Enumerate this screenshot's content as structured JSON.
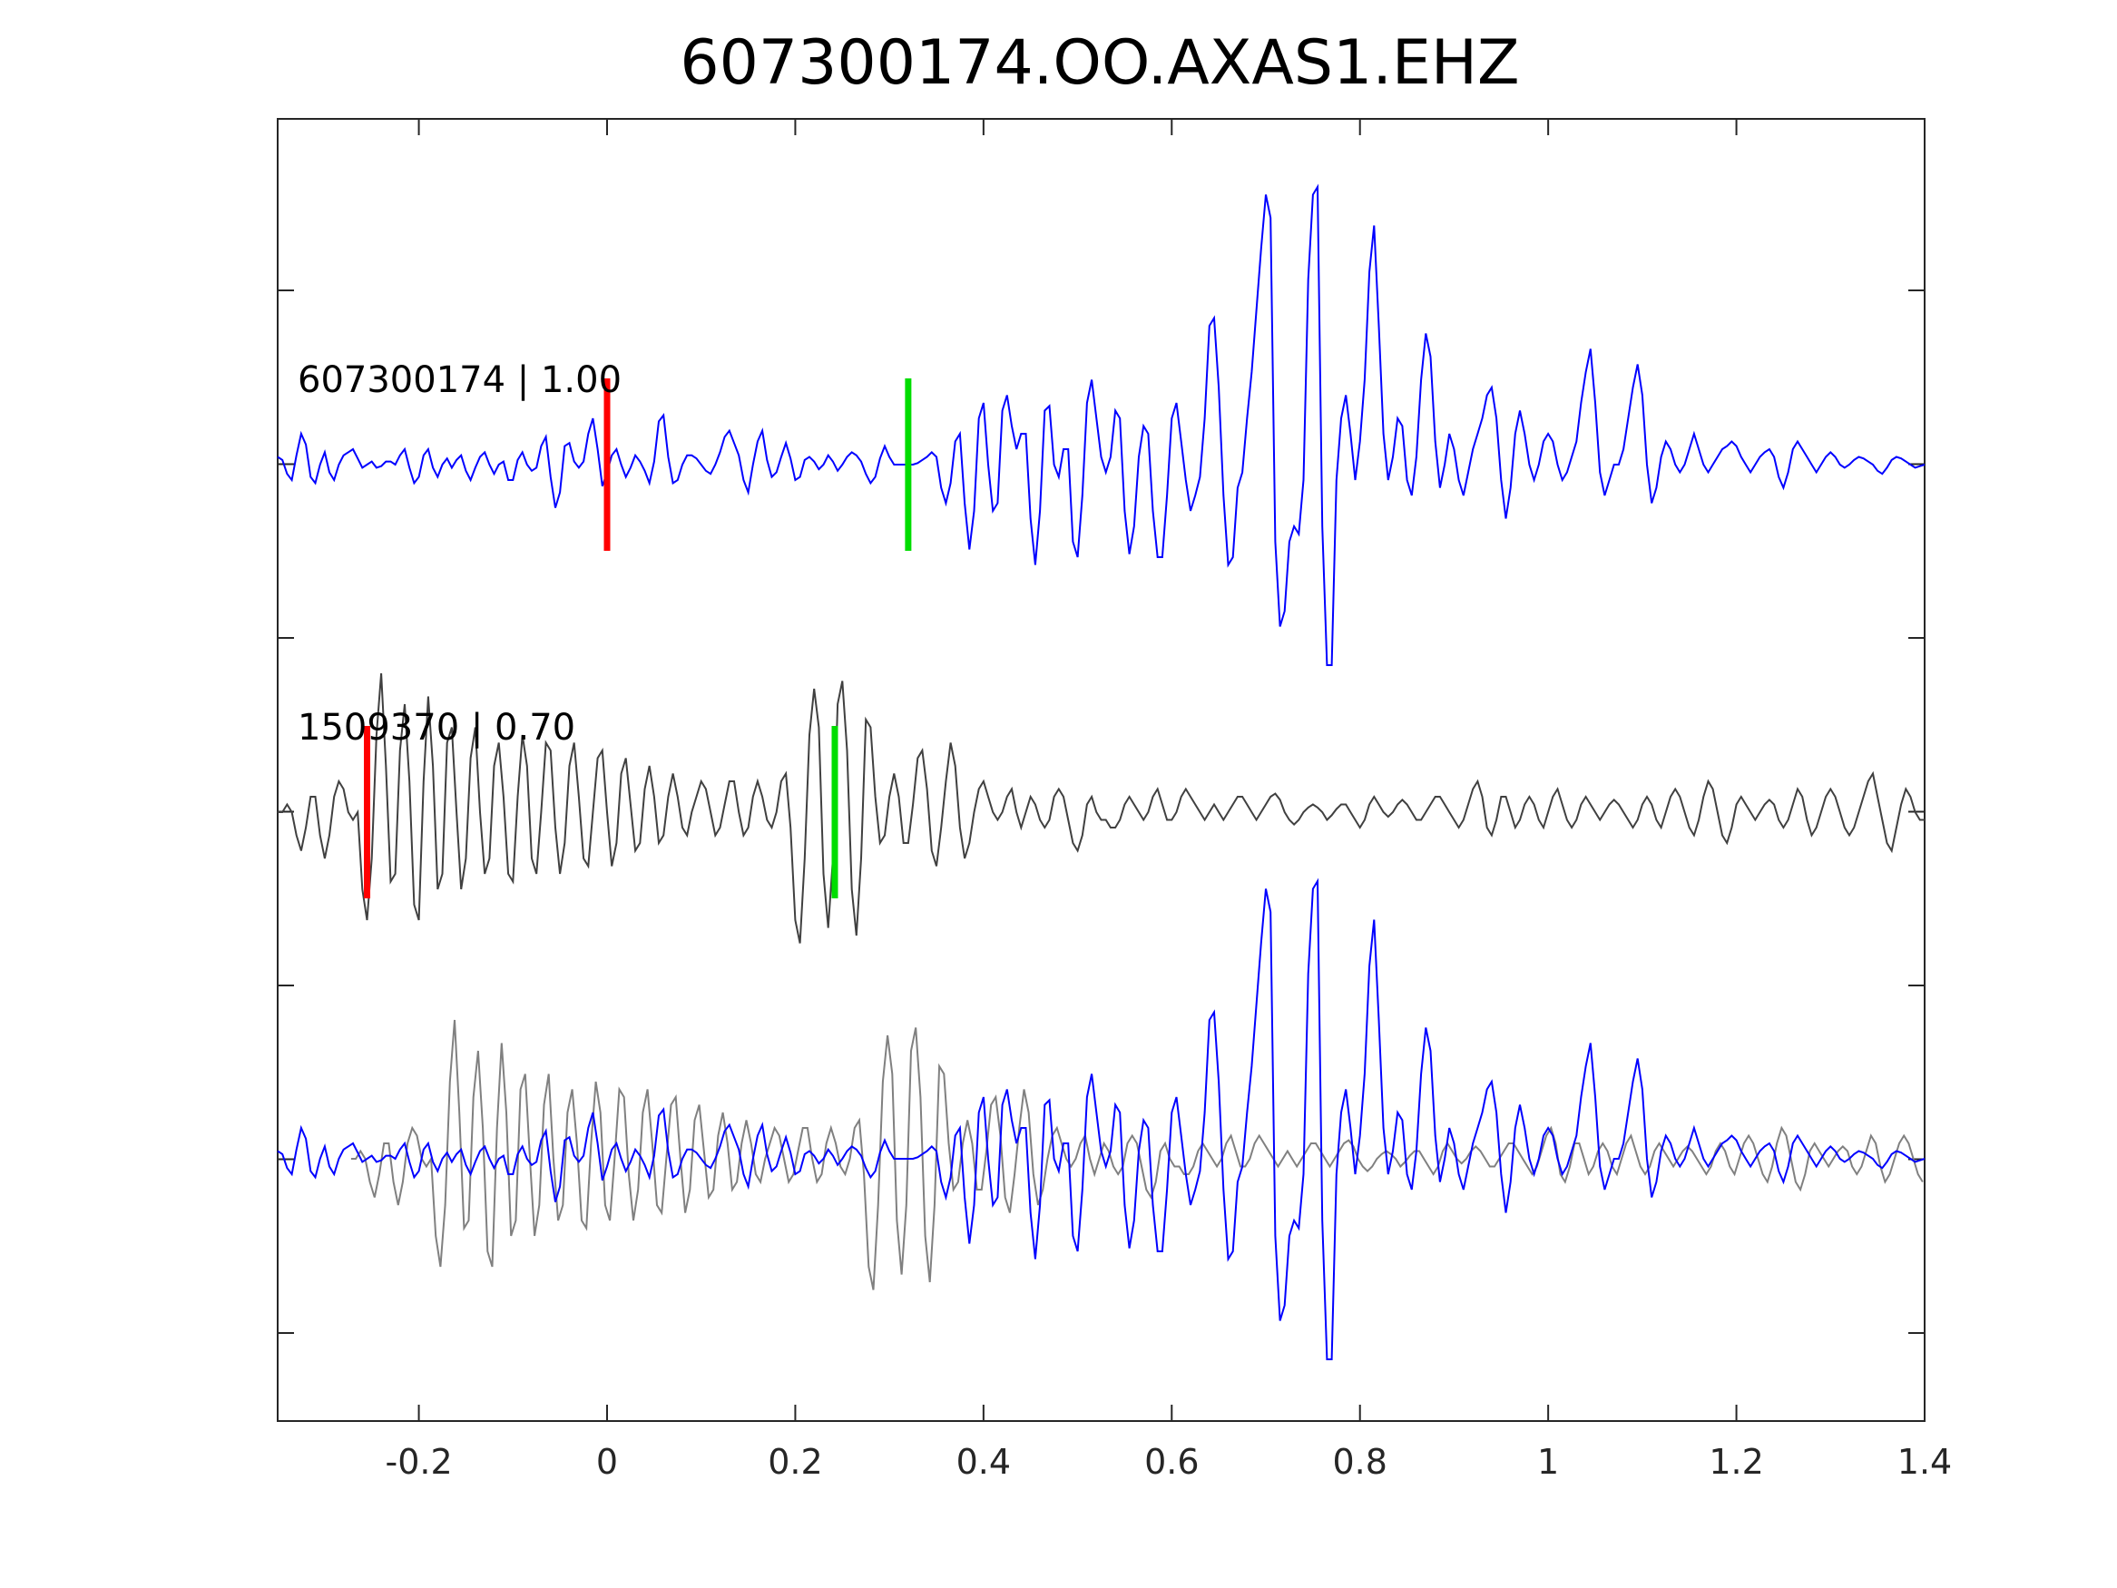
{
  "chart_data": {
    "type": "line",
    "title": "607300174.OO.AXAS1.EHZ",
    "xlim": [
      -0.35,
      1.4
    ],
    "xticks": [
      -0.2,
      0,
      0.2,
      0.4,
      0.6,
      0.8,
      1.0,
      1.2,
      1.4
    ],
    "xtick_labels": [
      "-0.2",
      "0",
      "0.2",
      "0.4",
      "0.6",
      "0.8",
      "1",
      "1.2",
      "1.4"
    ],
    "y_tick_count": 7,
    "ylabel": "",
    "xlabel": "",
    "grid": false,
    "traces": [
      {
        "label": "607300174 | 1.00",
        "color": "#0000ff",
        "offset": 0,
        "picks": [
          {
            "phase": "P",
            "x": 0.0,
            "color": "#ff0000"
          },
          {
            "phase": "S",
            "x": 0.32,
            "color": "#00dd00"
          }
        ],
        "samples_x_start": -0.35,
        "samples_dx": 0.005,
        "values": [
          0.05,
          0.03,
          -0.06,
          -0.1,
          0.06,
          0.2,
          0.13,
          -0.08,
          -0.12,
          0.0,
          0.08,
          -0.05,
          -0.1,
          0.0,
          0.06,
          0.08,
          0.1,
          0.04,
          -0.02,
          0.0,
          0.02,
          -0.02,
          -0.01,
          0.02,
          0.02,
          0.0,
          0.06,
          0.1,
          -0.02,
          -0.12,
          -0.08,
          0.06,
          0.1,
          -0.02,
          -0.08,
          0.0,
          0.04,
          -0.02,
          0.03,
          0.06,
          -0.04,
          -0.1,
          -0.02,
          0.05,
          0.08,
          0.0,
          -0.06,
          0.0,
          0.02,
          -0.1,
          -0.1,
          0.03,
          0.08,
          0.0,
          -0.04,
          -0.02,
          0.12,
          0.18,
          -0.08,
          -0.28,
          -0.18,
          0.12,
          0.14,
          0.02,
          -0.02,
          0.02,
          0.2,
          0.3,
          0.1,
          -0.14,
          -0.05,
          0.06,
          0.1,
          0.0,
          -0.08,
          -0.02,
          0.06,
          0.02,
          -0.04,
          -0.12,
          0.02,
          0.28,
          0.32,
          0.05,
          -0.12,
          -0.1,
          0.0,
          0.06,
          0.06,
          0.04,
          0.0,
          -0.04,
          -0.06,
          0.0,
          0.08,
          0.18,
          0.22,
          0.14,
          0.06,
          -0.1,
          -0.18,
          0.0,
          0.15,
          0.22,
          0.03,
          -0.08,
          -0.05,
          0.05,
          0.14,
          0.04,
          -0.1,
          -0.08,
          0.03,
          0.05,
          0.02,
          -0.03,
          0.0,
          0.06,
          0.02,
          -0.04,
          0.0,
          0.05,
          0.08,
          0.06,
          0.02,
          -0.06,
          -0.12,
          -0.08,
          0.04,
          0.12,
          0.05,
          0.0,
          0.0,
          0.0,
          0.0,
          0.0,
          0.01,
          0.03,
          0.05,
          0.08,
          0.05,
          -0.15,
          -0.25,
          -0.12,
          0.15,
          0.2,
          -0.25,
          -0.55,
          -0.3,
          0.3,
          0.4,
          0.0,
          -0.3,
          -0.25,
          0.35,
          0.45,
          0.25,
          0.1,
          0.2,
          0.2,
          -0.35,
          -0.65,
          -0.3,
          0.35,
          0.38,
          0.0,
          -0.08,
          0.1,
          0.1,
          -0.5,
          -0.6,
          -0.2,
          0.4,
          0.55,
          0.3,
          0.05,
          -0.05,
          0.05,
          0.35,
          0.3,
          -0.3,
          -0.58,
          -0.4,
          0.05,
          0.25,
          0.2,
          -0.3,
          -0.6,
          -0.6,
          -0.2,
          0.3,
          0.4,
          0.15,
          -0.1,
          -0.3,
          -0.2,
          -0.08,
          0.3,
          0.9,
          0.95,
          0.5,
          -0.2,
          -0.65,
          -0.6,
          -0.15,
          -0.05,
          0.3,
          0.6,
          1.0,
          1.4,
          1.75,
          1.6,
          -0.5,
          -1.05,
          -0.95,
          -0.5,
          -0.4,
          -0.45,
          -0.1,
          1.2,
          1.75,
          1.8,
          -0.4,
          -1.3,
          -1.3,
          -0.1,
          0.3,
          0.45,
          0.2,
          -0.1,
          0.15,
          0.55,
          1.25,
          1.55,
          0.9,
          0.2,
          -0.1,
          0.05,
          0.3,
          0.25,
          -0.1,
          -0.2,
          0.05,
          0.55,
          0.85,
          0.7,
          0.15,
          -0.15,
          0.0,
          0.2,
          0.1,
          -0.1,
          -0.2,
          -0.05,
          0.1,
          0.2,
          0.3,
          0.45,
          0.5,
          0.3,
          -0.1,
          -0.35,
          -0.15,
          0.2,
          0.35,
          0.2,
          0.0,
          -0.1,
          0.0,
          0.15,
          0.2,
          0.15,
          0.0,
          -0.1,
          -0.05,
          0.05,
          0.15,
          0.4,
          0.6,
          0.75,
          0.4,
          -0.05,
          -0.2,
          -0.1,
          0.0,
          0.0,
          0.1,
          0.3,
          0.5,
          0.65,
          0.45,
          0.0,
          -0.25,
          -0.15,
          0.05,
          0.15,
          0.1,
          0.0,
          -0.05,
          0.0,
          0.1,
          0.2,
          0.1,
          0.0,
          -0.05,
          0.0,
          0.05,
          0.1,
          0.12,
          0.15,
          0.12,
          0.05,
          0.0,
          -0.05,
          0.0,
          0.05,
          0.08,
          0.1,
          0.05,
          -0.08,
          -0.15,
          -0.05,
          0.1,
          0.15,
          0.1,
          0.05,
          0.0,
          -0.05,
          0.0,
          0.05,
          0.08,
          0.05,
          0.0,
          -0.02,
          0.0,
          0.03,
          0.05,
          0.04,
          0.02,
          0.0,
          -0.04,
          -0.06,
          -0.02,
          0.03,
          0.05,
          0.04,
          0.02,
          0.0,
          -0.02,
          -0.01,
          0.0,
          0.02,
          0.03,
          0.05,
          0.06,
          0.04,
          0.0,
          -0.05,
          -0.1,
          -0.08,
          0.0,
          0.06,
          0.08,
          0.04,
          0.0,
          -0.02,
          0.0,
          0.02,
          0.0,
          -0.03,
          -0.02,
          0.0,
          0.02,
          0.04,
          0.06,
          0.03,
          0.0,
          -0.03,
          -0.02,
          0.0,
          0.0
        ]
      },
      {
        "label": "1509370 | 0.70",
        "color": "#404040",
        "offset": -1,
        "picks": [
          {
            "phase": "P",
            "x": -0.255,
            "color": "#ff0000"
          },
          {
            "phase": "S",
            "x": 0.242,
            "color": "#00dd00"
          }
        ],
        "samples_x_start": -0.35,
        "samples_dx": 0.005,
        "values": [
          0.0,
          0.0,
          0.05,
          0.0,
          -0.15,
          -0.25,
          -0.1,
          0.1,
          0.1,
          -0.15,
          -0.3,
          -0.15,
          0.1,
          0.2,
          0.15,
          0.0,
          -0.05,
          0.0,
          -0.5,
          -0.7,
          -0.3,
          0.5,
          0.9,
          0.3,
          -0.45,
          -0.4,
          0.4,
          0.7,
          0.2,
          -0.6,
          -0.7,
          0.2,
          0.75,
          0.3,
          -0.5,
          -0.4,
          0.45,
          0.55,
          0.0,
          -0.5,
          -0.3,
          0.35,
          0.55,
          0.0,
          -0.4,
          -0.3,
          0.3,
          0.45,
          0.1,
          -0.4,
          -0.45,
          0.1,
          0.5,
          0.3,
          -0.3,
          -0.4,
          0.0,
          0.45,
          0.4,
          -0.1,
          -0.4,
          -0.2,
          0.3,
          0.45,
          0.1,
          -0.3,
          -0.35,
          0.0,
          0.35,
          0.4,
          0.0,
          -0.35,
          -0.2,
          0.25,
          0.35,
          0.05,
          -0.25,
          -0.2,
          0.15,
          0.3,
          0.1,
          -0.2,
          -0.15,
          0.1,
          0.25,
          0.1,
          -0.1,
          -0.15,
          0.0,
          0.1,
          0.2,
          0.15,
          0.0,
          -0.15,
          -0.1,
          0.05,
          0.2,
          0.2,
          0.0,
          -0.15,
          -0.1,
          0.1,
          0.2,
          0.1,
          -0.05,
          -0.1,
          0.0,
          0.2,
          0.25,
          -0.1,
          -0.7,
          -0.85,
          -0.3,
          0.5,
          0.8,
          0.55,
          -0.4,
          -0.75,
          -0.3,
          0.7,
          0.85,
          0.4,
          -0.5,
          -0.8,
          -0.3,
          0.6,
          0.55,
          0.1,
          -0.2,
          -0.15,
          0.1,
          0.25,
          0.1,
          -0.2,
          -0.2,
          0.05,
          0.35,
          0.4,
          0.15,
          -0.25,
          -0.35,
          -0.1,
          0.2,
          0.45,
          0.3,
          -0.1,
          -0.3,
          -0.2,
          0.0,
          0.15,
          0.2,
          0.1,
          0.0,
          -0.05,
          0.0,
          0.1,
          0.15,
          0.0,
          -0.1,
          0.0,
          0.1,
          0.05,
          -0.05,
          -0.1,
          -0.05,
          0.1,
          0.15,
          0.1,
          -0.05,
          -0.2,
          -0.25,
          -0.15,
          0.05,
          0.1,
          0.0,
          -0.05,
          -0.05,
          -0.1,
          -0.1,
          -0.05,
          0.05,
          0.1,
          0.05,
          0.0,
          -0.05,
          0.0,
          0.1,
          0.15,
          0.05,
          -0.05,
          -0.05,
          0.0,
          0.1,
          0.15,
          0.1,
          0.05,
          0.0,
          -0.05,
          0.0,
          0.05,
          0.0,
          -0.05,
          0.0,
          0.05,
          0.1,
          0.1,
          0.05,
          0.0,
          -0.05,
          0.0,
          0.05,
          0.1,
          0.12,
          0.08,
          0.0,
          -0.05,
          -0.08,
          -0.05,
          0.0,
          0.03,
          0.05,
          0.03,
          0.0,
          -0.05,
          -0.02,
          0.02,
          0.05,
          0.05,
          0.0,
          -0.05,
          -0.1,
          -0.05,
          0.05,
          0.1,
          0.05,
          0.0,
          -0.03,
          0.0,
          0.05,
          0.08,
          0.05,
          0.0,
          -0.05,
          -0.05,
          0.0,
          0.05,
          0.1,
          0.1,
          0.05,
          0.0,
          -0.05,
          -0.1,
          -0.05,
          0.05,
          0.15,
          0.2,
          0.1,
          -0.1,
          -0.15,
          -0.05,
          0.1,
          0.1,
          0.0,
          -0.1,
          -0.05,
          0.05,
          0.1,
          0.05,
          -0.05,
          -0.1,
          0.0,
          0.1,
          0.15,
          0.05,
          -0.05,
          -0.1,
          -0.05,
          0.05,
          0.1,
          0.05,
          0.0,
          -0.05,
          0.0,
          0.05,
          0.08,
          0.05,
          0.0,
          -0.05,
          -0.1,
          -0.05,
          0.05,
          0.1,
          0.05,
          -0.05,
          -0.1,
          0.0,
          0.1,
          0.15,
          0.1,
          0.0,
          -0.1,
          -0.15,
          -0.05,
          0.1,
          0.2,
          0.15,
          0.0,
          -0.15,
          -0.2,
          -0.1,
          0.05,
          0.1,
          0.05,
          0.0,
          -0.05,
          0.0,
          0.05,
          0.08,
          0.05,
          -0.05,
          -0.1,
          -0.05,
          0.05,
          0.15,
          0.1,
          -0.05,
          -0.15,
          -0.1,
          0.0,
          0.1,
          0.15,
          0.1,
          0.0,
          -0.1,
          -0.15,
          -0.1,
          0.0,
          0.1,
          0.2,
          0.25,
          0.1,
          -0.05,
          -0.2,
          -0.25,
          -0.1,
          0.05,
          0.15,
          0.1,
          0.0,
          -0.05,
          -0.05,
          0.0,
          0.05,
          0.1,
          0.15,
          0.1,
          0.0,
          -0.1,
          -0.15,
          -0.1,
          0.0,
          0.1,
          0.15,
          0.1,
          0.0,
          -0.1,
          -0.2,
          -0.25,
          0.0
        ]
      },
      {
        "label": "",
        "color": "#808080",
        "offset": -2,
        "overlay_of": [
          0,
          1
        ],
        "aligned_by_pick": "S"
      }
    ]
  }
}
